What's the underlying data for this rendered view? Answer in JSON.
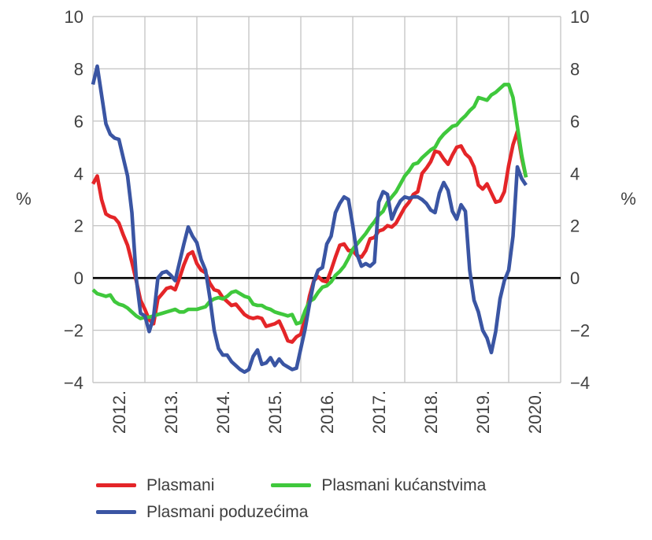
{
  "chart_data": {
    "type": "line",
    "title": "",
    "ylabel_left": "%",
    "ylabel_right": "%",
    "ylim": [
      -4,
      10
    ],
    "y_tick_values": [
      10,
      8,
      6,
      4,
      2,
      0,
      -2,
      -4
    ],
    "y_tick_labels_left": [
      "10",
      "8",
      "6",
      "4",
      "2",
      "0",
      "−2",
      "−4"
    ],
    "y_tick_labels_right": [
      "10",
      "8",
      "6",
      "4",
      "2",
      "0",
      "−2",
      "−4"
    ],
    "x_tick_labels": [
      "2012.",
      "2013.",
      "2014.",
      "2015.",
      "2016.",
      "2017.",
      "2018.",
      "2019.",
      "2020."
    ],
    "x_start": "2012-01",
    "x_end": "2020-05",
    "frequency": "monthly",
    "grid": true,
    "zero_line": true,
    "legend_position": "bottom",
    "colors": {
      "grid": "#c7c7c7",
      "zero_line": "#000000",
      "tick_text": "#414141",
      "plasmani": "#e42528",
      "plasmani_kucanstvima": "#3fc83c",
      "plasmani_poduzecima": "#3a55a3"
    },
    "series": [
      {
        "name": "Plasmani",
        "color": "#e42528",
        "values": [
          3.6,
          3.9,
          3.0,
          2.45,
          2.35,
          2.3,
          2.1,
          1.65,
          1.25,
          0.6,
          -0.1,
          -0.85,
          -1.2,
          -1.6,
          -1.75,
          -0.8,
          -0.6,
          -0.4,
          -0.35,
          -0.45,
          0.0,
          0.5,
          0.9,
          1.0,
          0.55,
          0.3,
          0.2,
          -0.2,
          -0.45,
          -0.5,
          -0.75,
          -0.9,
          -1.05,
          -1.0,
          -1.2,
          -1.4,
          -1.5,
          -1.55,
          -1.5,
          -1.55,
          -1.85,
          -1.8,
          -1.75,
          -1.65,
          -2.0,
          -2.4,
          -2.45,
          -2.25,
          -2.15,
          -1.55,
          -0.7,
          -0.1,
          0.05,
          -0.1,
          -0.15,
          0.3,
          0.8,
          1.25,
          1.3,
          1.05,
          1.05,
          0.85,
          0.8,
          1.05,
          1.5,
          1.55,
          1.8,
          1.85,
          2.0,
          1.95,
          2.1,
          2.4,
          2.7,
          2.9,
          3.2,
          3.3,
          4.0,
          4.2,
          4.45,
          4.85,
          4.8,
          4.55,
          4.35,
          4.7,
          5.0,
          5.05,
          4.75,
          4.6,
          4.25,
          3.55,
          3.4,
          3.6,
          3.25,
          2.9,
          2.95,
          3.3,
          4.3,
          5.1,
          5.6,
          4.6,
          3.85
        ]
      },
      {
        "name": "Plasmani kućanstvima",
        "color": "#3fc83c",
        "values": [
          -0.45,
          -0.6,
          -0.65,
          -0.7,
          -0.65,
          -0.9,
          -1.0,
          -1.05,
          -1.15,
          -1.3,
          -1.45,
          -1.55,
          -1.5,
          -1.5,
          -1.45,
          -1.4,
          -1.35,
          -1.3,
          -1.25,
          -1.2,
          -1.3,
          -1.3,
          -1.2,
          -1.2,
          -1.2,
          -1.15,
          -1.1,
          -0.9,
          -0.8,
          -0.75,
          -0.8,
          -0.7,
          -0.55,
          -0.5,
          -0.6,
          -0.7,
          -0.75,
          -1.0,
          -1.05,
          -1.05,
          -1.15,
          -1.2,
          -1.3,
          -1.35,
          -1.4,
          -1.45,
          -1.4,
          -1.75,
          -1.7,
          -1.25,
          -0.9,
          -0.8,
          -0.55,
          -0.35,
          -0.3,
          -0.15,
          0.1,
          0.25,
          0.45,
          0.75,
          1.1,
          1.3,
          1.5,
          1.7,
          1.95,
          2.15,
          2.4,
          2.55,
          2.9,
          3.1,
          3.3,
          3.6,
          3.9,
          4.1,
          4.35,
          4.4,
          4.6,
          4.75,
          4.9,
          5.0,
          5.3,
          5.5,
          5.65,
          5.8,
          5.85,
          6.05,
          6.2,
          6.4,
          6.55,
          6.9,
          6.85,
          6.8,
          7.0,
          7.1,
          7.25,
          7.4,
          7.4,
          6.9,
          5.8,
          4.7,
          3.85
        ]
      },
      {
        "name": "Plasmani poduzećima",
        "color": "#3a55a3",
        "values": [
          7.4,
          8.1,
          7.0,
          5.9,
          5.5,
          5.35,
          5.3,
          4.6,
          3.9,
          2.5,
          0.0,
          -1.35,
          -1.45,
          -2.05,
          -1.5,
          0.0,
          0.2,
          0.25,
          0.1,
          -0.1,
          0.6,
          1.3,
          1.95,
          1.6,
          1.35,
          0.7,
          0.3,
          -0.75,
          -2.0,
          -2.7,
          -2.95,
          -2.95,
          -3.2,
          -3.35,
          -3.5,
          -3.6,
          -3.5,
          -3.0,
          -2.75,
          -3.3,
          -3.25,
          -3.05,
          -3.35,
          -3.1,
          -3.3,
          -3.4,
          -3.5,
          -3.45,
          -2.7,
          -1.95,
          -1.0,
          -0.15,
          0.3,
          0.4,
          1.3,
          1.6,
          2.5,
          2.85,
          3.1,
          3.0,
          2.0,
          0.9,
          0.45,
          0.55,
          0.45,
          0.6,
          2.9,
          3.3,
          3.2,
          2.25,
          2.65,
          2.95,
          3.1,
          3.05,
          3.1,
          3.1,
          3.0,
          2.85,
          2.6,
          2.5,
          3.25,
          3.65,
          3.35,
          2.55,
          2.25,
          2.8,
          2.55,
          0.3,
          -0.85,
          -1.3,
          -2.0,
          -2.3,
          -2.85,
          -2.05,
          -0.8,
          -0.1,
          0.3,
          1.6,
          4.25,
          3.8,
          3.55
        ]
      }
    ],
    "legend": {
      "rows": [
        [
          {
            "series": 0,
            "label": "Plasmani"
          },
          {
            "series": 1,
            "label": "Plasmani kućanstvima"
          }
        ],
        [
          {
            "series": 2,
            "label": "Plasmani poduzećima"
          }
        ]
      ]
    }
  }
}
